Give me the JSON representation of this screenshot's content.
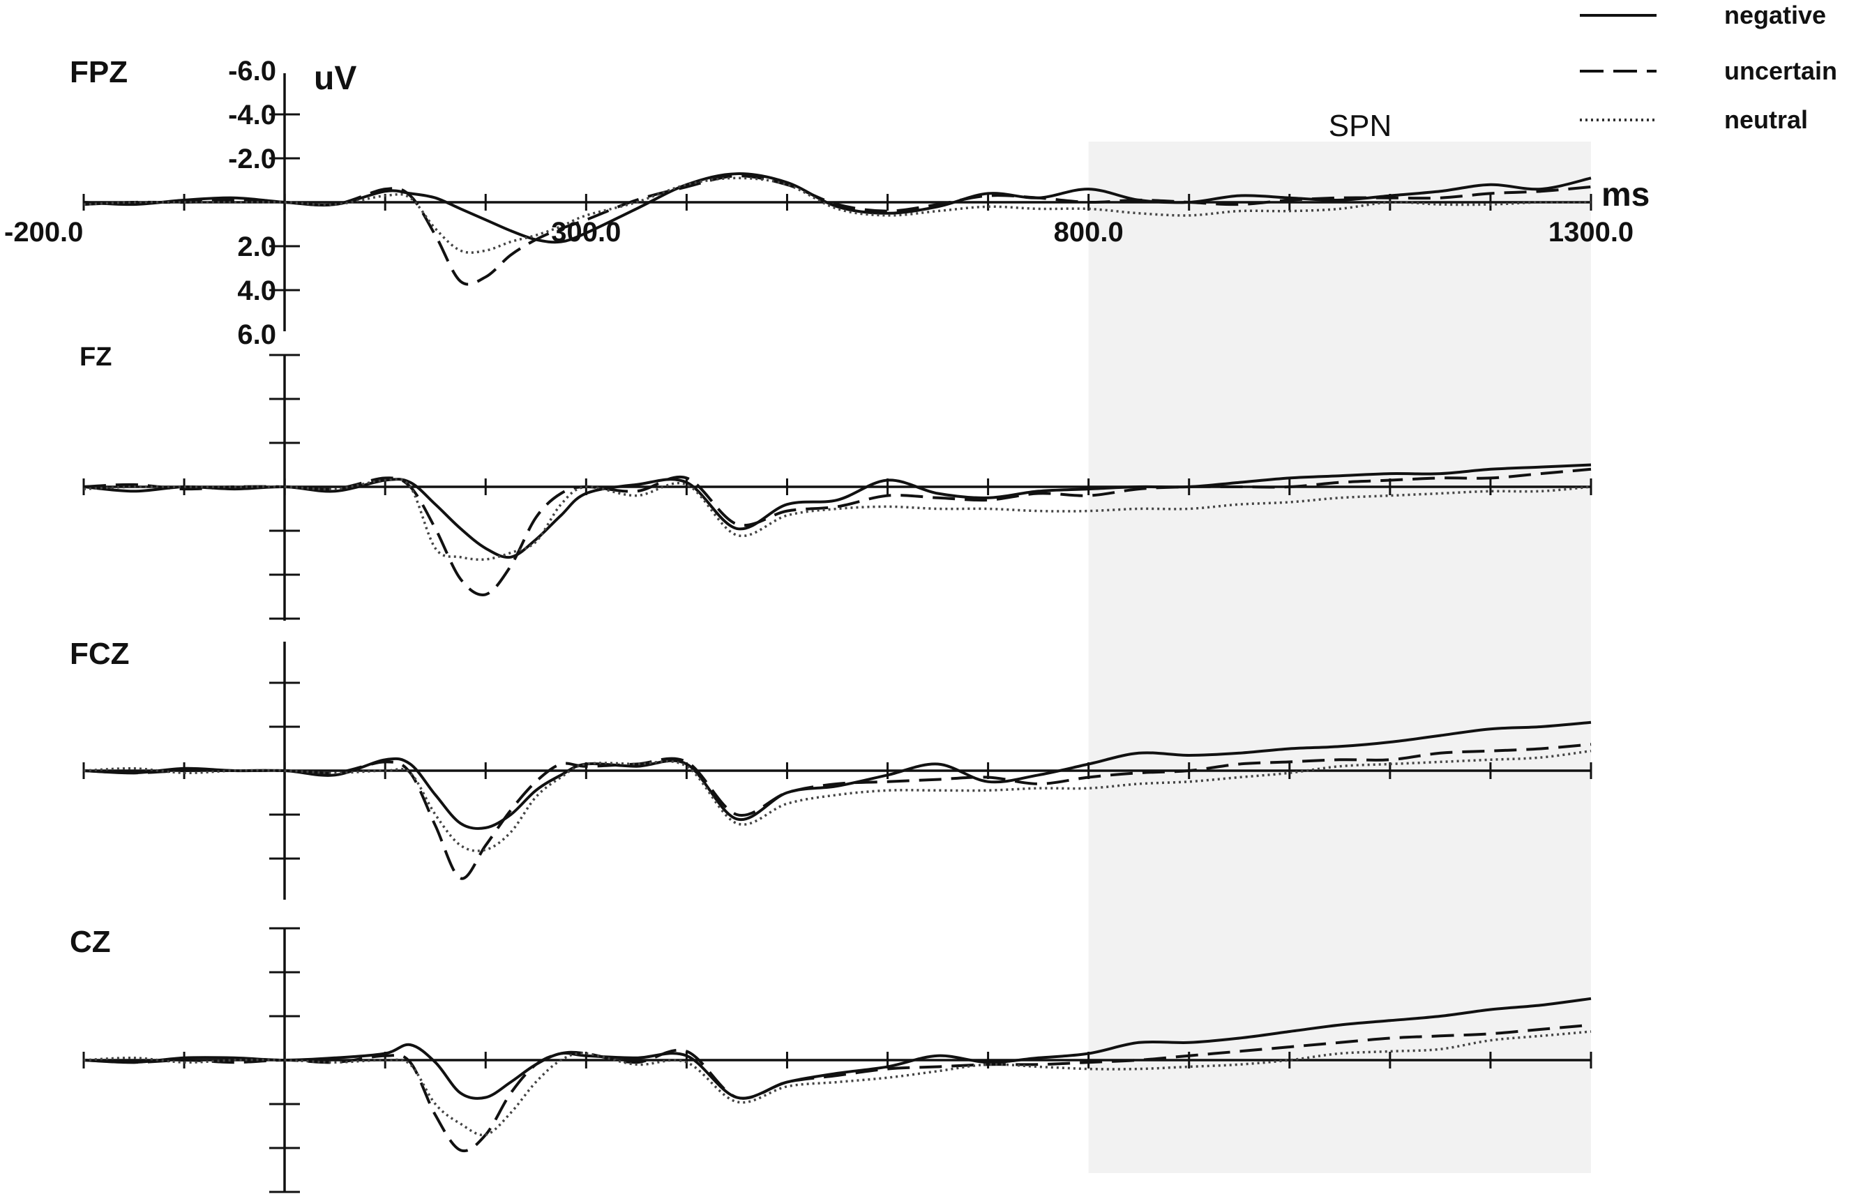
{
  "chart_data": {
    "type": "line",
    "xunit": "ms",
    "yunit": "uV",
    "y_inverted": true,
    "xlim": [
      -200,
      1300
    ],
    "ylim": [
      -6.0,
      6.0
    ],
    "x_ticks": [
      -200,
      -100,
      0,
      100,
      200,
      300,
      400,
      500,
      600,
      700,
      800,
      900,
      1000,
      1100,
      1200,
      1300
    ],
    "x_tick_labels": [
      {
        "x": -200,
        "text": "-200.0"
      },
      {
        "x": 300,
        "text": "300.0"
      },
      {
        "x": 800,
        "text": "800.0"
      },
      {
        "x": 1300,
        "text": "1300.0"
      }
    ],
    "y_ticks": [
      -6,
      -4,
      -2,
      0,
      2,
      4,
      6
    ],
    "y_tick_labels": [
      {
        "y": -6,
        "text": "-6.0"
      },
      {
        "y": -4,
        "text": "-4.0"
      },
      {
        "y": -2,
        "text": "-2.0"
      },
      {
        "y": 2,
        "text": "2.0"
      },
      {
        "y": 4,
        "text": "4.0"
      },
      {
        "y": 6,
        "text": "6.0"
      }
    ],
    "shaded_region": {
      "x": [
        800,
        1300
      ],
      "label": "SPN",
      "color": "#f2f2f2"
    },
    "legend": {
      "placement": "top-right",
      "entries": [
        {
          "name": "negative",
          "style": "solid"
        },
        {
          "name": "uncertain",
          "style": "dashed"
        },
        {
          "name": "neutral",
          "style": "dotted"
        }
      ]
    },
    "sample_x": [
      -200,
      -150,
      -100,
      -50,
      0,
      50,
      100,
      125,
      150,
      175,
      200,
      225,
      250,
      275,
      300,
      350,
      400,
      450,
      500,
      550,
      600,
      650,
      700,
      750,
      800,
      850,
      900,
      950,
      1000,
      1050,
      1100,
      1150,
      1200,
      1250,
      1300
    ],
    "panels": [
      {
        "channel": "FPZ",
        "series": [
          {
            "name": "negative",
            "values": [
              0,
              0.1,
              -0.1,
              -0.2,
              0,
              0.1,
              -0.5,
              -0.4,
              -0.2,
              0.3,
              0.8,
              1.3,
              1.7,
              1.8,
              1.4,
              0.3,
              -0.8,
              -1.3,
              -0.9,
              0.2,
              0.5,
              0.2,
              -0.4,
              -0.2,
              -0.6,
              -0.1,
              0,
              -0.3,
              -0.2,
              -0.1,
              -0.3,
              -0.5,
              -0.8,
              -0.6,
              -1.1
            ]
          },
          {
            "name": "uncertain",
            "values": [
              0.1,
              0,
              0,
              -0.1,
              0,
              0.1,
              -0.6,
              -0.3,
              1.5,
              3.6,
              3.4,
              2.4,
              1.7,
              1.2,
              0.8,
              -0.1,
              -0.7,
              -1.2,
              -0.8,
              0.1,
              0.4,
              0.1,
              -0.3,
              -0.2,
              0,
              -0.1,
              0,
              0.1,
              -0.1,
              -0.2,
              -0.2,
              -0.2,
              -0.4,
              -0.5,
              -0.7
            ]
          },
          {
            "name": "neutral",
            "values": [
              0.1,
              0,
              0,
              0,
              0,
              0.1,
              -0.3,
              -0.2,
              1.2,
              2.2,
              2.2,
              1.8,
              1.5,
              1.1,
              0.6,
              0,
              -0.8,
              -1.1,
              -0.8,
              0.3,
              0.6,
              0.4,
              0.2,
              0.3,
              0.3,
              0.5,
              0.6,
              0.4,
              0.4,
              0.3,
              0,
              0.1,
              0.1,
              0,
              0
            ]
          }
        ]
      },
      {
        "channel": "FZ",
        "series": [
          {
            "name": "negative",
            "values": [
              0,
              0.2,
              0,
              0.1,
              0,
              0.2,
              -0.3,
              -0.2,
              0.8,
              1.9,
              2.8,
              3.2,
              2.4,
              1.3,
              0.3,
              -0.1,
              -0.2,
              1.9,
              0.8,
              0.6,
              -0.3,
              0.3,
              0.5,
              0.2,
              0.1,
              0,
              0,
              -0.2,
              -0.4,
              -0.5,
              -0.6,
              -0.6,
              -0.8,
              -0.9,
              -1.0
            ]
          },
          {
            "name": "uncertain",
            "values": [
              0,
              -0.1,
              0.1,
              0,
              0,
              0.1,
              -0.4,
              0,
              1.9,
              4.2,
              4.9,
              3.6,
              1.4,
              0.3,
              0,
              0.2,
              -0.4,
              1.7,
              1.1,
              0.9,
              0.4,
              0.5,
              0.6,
              0.3,
              0.4,
              0.1,
              0,
              0,
              0,
              -0.2,
              -0.3,
              -0.4,
              -0.4,
              -0.6,
              -0.8
            ]
          },
          {
            "name": "neutral",
            "values": [
              0.1,
              0,
              0,
              0,
              0,
              0.1,
              -0.3,
              0,
              2.8,
              3.2,
              3.3,
              3.0,
              2.5,
              0.8,
              0,
              0.4,
              -0.1,
              2.2,
              1.3,
              1.0,
              0.9,
              1.0,
              1.0,
              1.1,
              1.1,
              1.0,
              1.0,
              0.8,
              0.7,
              0.5,
              0.4,
              0.3,
              0.2,
              0.2,
              0
            ]
          }
        ]
      },
      {
        "channel": "FCZ",
        "series": [
          {
            "name": "negative",
            "values": [
              0,
              0.1,
              -0.1,
              0,
              0,
              0.2,
              -0.5,
              -0.3,
              1.1,
              2.4,
              2.6,
              2.0,
              0.9,
              0.2,
              -0.3,
              -0.2,
              -0.3,
              2.2,
              1.0,
              0.7,
              0.2,
              -0.3,
              0.5,
              0.2,
              -0.3,
              -0.8,
              -0.7,
              -0.8,
              -1.0,
              -1.1,
              -1.3,
              -1.6,
              -1.9,
              -2.0,
              -2.2
            ]
          },
          {
            "name": "uncertain",
            "values": [
              0,
              0.1,
              0,
              0,
              0,
              0.1,
              -0.4,
              0.1,
              2.5,
              4.9,
              3.4,
              1.8,
              0.5,
              -0.3,
              -0.2,
              -0.3,
              -0.4,
              2.0,
              1.0,
              0.6,
              0.5,
              0.4,
              0.3,
              0.6,
              0.3,
              0.1,
              0,
              -0.3,
              -0.4,
              -0.5,
              -0.5,
              -0.8,
              -0.9,
              -1.0,
              -1.2
            ]
          },
          {
            "name": "neutral",
            "values": [
              0,
              -0.1,
              0.1,
              0,
              0,
              0.1,
              0,
              0.1,
              2.0,
              3.4,
              3.6,
              2.8,
              1.2,
              0.3,
              -0.3,
              -0.3,
              -0.2,
              2.4,
              1.5,
              1.1,
              0.9,
              0.9,
              0.9,
              0.8,
              0.8,
              0.6,
              0.5,
              0.3,
              0.1,
              -0.2,
              -0.3,
              -0.4,
              -0.5,
              -0.6,
              -0.9
            ]
          }
        ]
      },
      {
        "channel": "CZ",
        "series": [
          {
            "name": "negative",
            "values": [
              0,
              0.1,
              -0.1,
              -0.1,
              0,
              -0.1,
              -0.3,
              -0.7,
              0.1,
              1.5,
              1.7,
              1.0,
              0.2,
              -0.3,
              -0.2,
              -0.1,
              -0.2,
              1.7,
              1.0,
              0.6,
              0.3,
              -0.2,
              0.1,
              -0.1,
              -0.3,
              -0.8,
              -0.8,
              -1.0,
              -1.3,
              -1.6,
              -1.8,
              -2.0,
              -2.3,
              -2.5,
              -2.8
            ]
          },
          {
            "name": "uncertain",
            "values": [
              0,
              0.1,
              0,
              0.1,
              0,
              0.1,
              -0.2,
              0.1,
              2.5,
              4.1,
              3.4,
              1.5,
              0.2,
              -0.3,
              -0.3,
              0.1,
              -0.4,
              1.7,
              1.0,
              0.7,
              0.4,
              0.3,
              0.2,
              0.2,
              0.1,
              0,
              -0.2,
              -0.4,
              -0.6,
              -0.8,
              -1.0,
              -1.1,
              -1.2,
              -1.4,
              -1.6
            ]
          },
          {
            "name": "neutral",
            "values": [
              0,
              -0.1,
              0.1,
              0,
              0,
              0.1,
              0,
              0.2,
              2.0,
              2.9,
              3.4,
              2.4,
              1.0,
              0,
              -0.3,
              0.2,
              0.1,
              1.9,
              1.2,
              1.0,
              0.8,
              0.5,
              0.2,
              0.3,
              0.4,
              0.4,
              0.3,
              0.2,
              0,
              -0.3,
              -0.4,
              -0.5,
              -0.9,
              -1.1,
              -1.3
            ]
          }
        ]
      }
    ]
  }
}
